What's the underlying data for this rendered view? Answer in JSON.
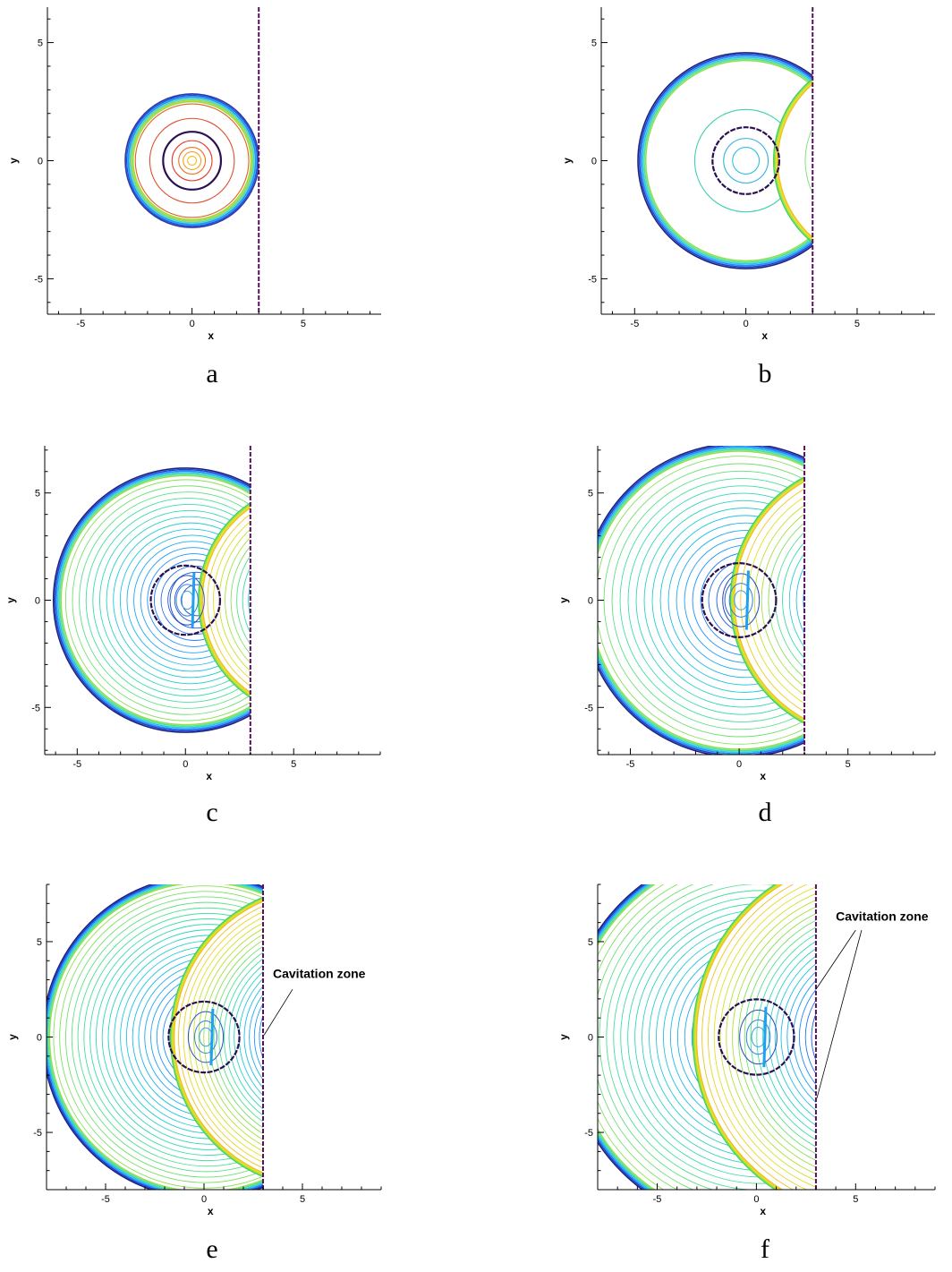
{
  "chart_data": [
    {
      "type": "contour",
      "panel_label": "a",
      "xlabel": "x",
      "ylabel": "y",
      "xlim": [
        -6.5,
        8.5
      ],
      "ylim": [
        -6.5,
        6.5
      ],
      "xticks": [
        -5,
        0,
        5
      ],
      "yticks": [
        -5,
        0,
        5
      ],
      "wall_x": 3,
      "front_radius": 3.0,
      "bubble_radius": 1.3,
      "contours": [
        {
          "shape": "circle",
          "cx": 0,
          "cy": 0,
          "r": 3.0,
          "color": "#2b3fbf"
        },
        {
          "shape": "circle",
          "cx": 0,
          "cy": 0,
          "r": 2.9,
          "color": "#2fa8ff"
        },
        {
          "shape": "circle",
          "cx": 0,
          "cy": 0,
          "r": 2.8,
          "color": "#5fe0a0"
        },
        {
          "shape": "circle",
          "cx": 0,
          "cy": 0,
          "r": 2.7,
          "color": "#d8d020"
        },
        {
          "shape": "circle",
          "cx": 0,
          "cy": 0,
          "r": 2.55,
          "color": "#e06020"
        },
        {
          "shape": "circle",
          "cx": 0,
          "cy": 0,
          "r": 1.9,
          "color": "#e05030"
        },
        {
          "shape": "circle",
          "cx": 0,
          "cy": 0,
          "r": 0.9,
          "color": "#e04030"
        },
        {
          "shape": "circle",
          "cx": 0,
          "cy": 0,
          "r": 0.6,
          "color": "#f07020"
        },
        {
          "shape": "circle",
          "cx": 0,
          "cy": 0,
          "r": 0.4,
          "color": "#f0a020"
        },
        {
          "shape": "circle",
          "cx": 0,
          "cy": 0,
          "r": 0.2,
          "color": "#f0c020"
        }
      ],
      "annotations": []
    },
    {
      "type": "contour",
      "panel_label": "b",
      "xlabel": "x",
      "ylabel": "y",
      "xlim": [
        -6.5,
        8.5
      ],
      "ylim": [
        -6.5,
        6.5
      ],
      "xticks": [
        -5,
        0,
        5
      ],
      "yticks": [
        -5,
        0,
        5
      ],
      "wall_x": 3,
      "front_radius": 4.85,
      "bubble_radius": 1.5,
      "reflected_center_x": 6,
      "reflected_radius": 4.75,
      "contours": [
        {
          "shape": "circle",
          "cx": 0,
          "cy": 0,
          "r": 1.0,
          "color": "#30b0e0"
        },
        {
          "shape": "circle",
          "cx": 0,
          "cy": 0,
          "r": 0.6,
          "color": "#30c0e0"
        },
        {
          "shape": "circle",
          "cx": 0,
          "cy": 0,
          "r": 2.3,
          "color": "#40d0b0"
        }
      ],
      "annotations": []
    },
    {
      "type": "contour",
      "panel_label": "c",
      "xlabel": "x",
      "ylabel": "y",
      "xlim": [
        -6.5,
        9
      ],
      "ylim": [
        -7.2,
        7.2
      ],
      "xticks": [
        -5,
        0,
        5
      ],
      "yticks": [
        -5,
        0,
        5
      ],
      "wall_x": 3,
      "front_radius": 6.1,
      "bubble_radius": 1.6,
      "reflected_center_x": 6,
      "reflected_radius": 5.4,
      "contours": [
        {
          "shape": "circle",
          "cx": 0,
          "cy": 0,
          "r": 0.5,
          "color": "#30a0e0"
        },
        {
          "shape": "circle",
          "cx": 0,
          "cy": 0,
          "r": 0.3,
          "color": "#30b0e0"
        }
      ],
      "annotations": []
    },
    {
      "type": "contour",
      "panel_label": "d",
      "xlabel": "x",
      "ylabel": "y",
      "xlim": [
        -6.5,
        9
      ],
      "ylim": [
        -7.2,
        7.2
      ],
      "xticks": [
        -5,
        0,
        5
      ],
      "yticks": [
        -5,
        0,
        5
      ],
      "wall_x": 3,
      "front_radius": 7.2,
      "bubble_radius": 1.7,
      "reflected_center_x": 6,
      "reflected_radius": 6.4,
      "contours": [],
      "annotations": []
    },
    {
      "type": "contour",
      "panel_label": "e",
      "xlabel": "x",
      "ylabel": "y",
      "xlim": [
        -8,
        9
      ],
      "ylim": [
        -8,
        8
      ],
      "xticks": [
        -5,
        0,
        5
      ],
      "yticks": [
        -5,
        0,
        5
      ],
      "wall_x": 3,
      "front_radius": 8.2,
      "bubble_radius": 1.8,
      "reflected_center_x": 6,
      "reflected_radius": 7.7,
      "contours": [],
      "annotations": [
        {
          "text": "Cavitation zone",
          "text_x": 3.5,
          "text_y": 3.1,
          "line_from": [
            4.5,
            2.5
          ],
          "line_to": [
            3.05,
            0.1
          ]
        }
      ]
    },
    {
      "type": "contour",
      "panel_label": "f",
      "xlabel": "x",
      "ylabel": "y",
      "xlim": [
        -8,
        9
      ],
      "ylim": [
        -8,
        8
      ],
      "xticks": [
        -5,
        0,
        5
      ],
      "yticks": [
        -5,
        0,
        5
      ],
      "wall_x": 3,
      "front_radius": 9.6,
      "bubble_radius": 1.9,
      "reflected_center_x": 6,
      "reflected_radius": 9.2,
      "contours": [],
      "annotations": [
        {
          "text": "Cavitation zone",
          "text_x": 4.0,
          "text_y": 6.1,
          "line_from": [
            5.0,
            5.6
          ],
          "line_to": [
            3.0,
            2.5
          ]
        },
        {
          "text": "",
          "text_x": 0,
          "text_y": 0,
          "line_from": [
            5.3,
            5.6
          ],
          "line_to": [
            3.05,
            -3.2
          ]
        }
      ]
    }
  ]
}
